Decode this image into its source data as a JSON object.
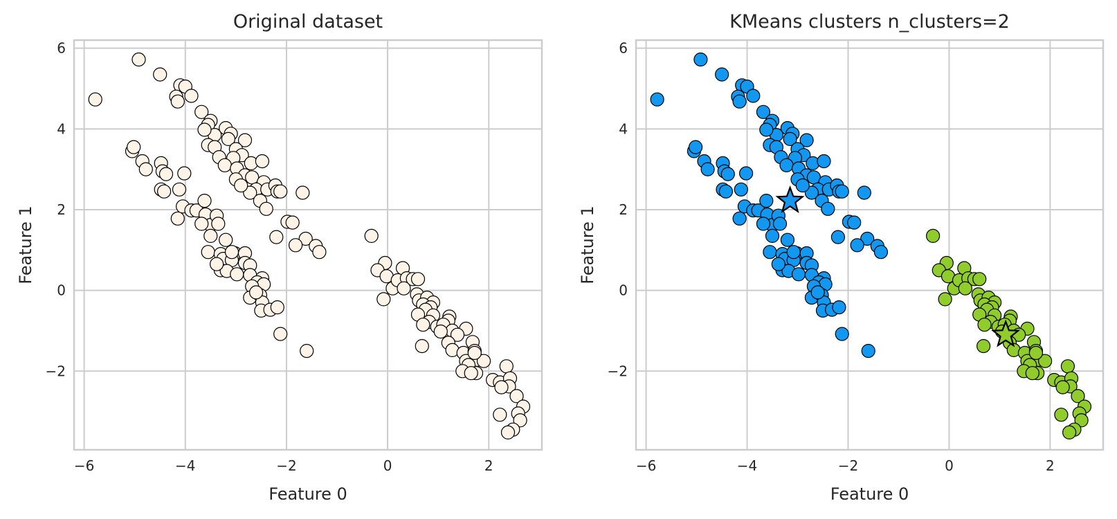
{
  "chart_data": [
    {
      "type": "scatter",
      "title": "Original dataset",
      "xlabel": "Feature 0",
      "ylabel": "Feature 1",
      "xlim": [
        -6.2,
        3.05
      ],
      "ylim": [
        -3.95,
        6.2
      ],
      "xticks": [
        -6,
        -4,
        -2,
        0,
        2
      ],
      "yticks": [
        -2,
        0,
        2,
        4,
        6
      ],
      "grid": true,
      "marker_color": "#fdf3e7",
      "points": [
        [
          -5.78,
          4.73
        ],
        [
          -4.92,
          5.72
        ],
        [
          -4.5,
          5.35
        ],
        [
          -4.1,
          5.08
        ],
        [
          -4.0,
          5.05
        ],
        [
          -3.88,
          4.82
        ],
        [
          -4.18,
          4.8
        ],
        [
          -4.15,
          4.68
        ],
        [
          -3.68,
          4.42
        ],
        [
          -3.5,
          4.2
        ],
        [
          -3.55,
          4.1
        ],
        [
          -3.42,
          3.85
        ],
        [
          -3.2,
          4.02
        ],
        [
          -3.1,
          3.88
        ],
        [
          -3.15,
          3.75
        ],
        [
          -3.62,
          3.98
        ],
        [
          -2.82,
          3.72
        ],
        [
          -3.55,
          3.6
        ],
        [
          -3.42,
          3.55
        ],
        [
          -3.0,
          3.5
        ],
        [
          -2.88,
          3.35
        ],
        [
          -3.33,
          3.3
        ],
        [
          -3.05,
          3.28
        ],
        [
          -2.7,
          3.15
        ],
        [
          -2.48,
          3.2
        ],
        [
          -3.22,
          3.1
        ],
        [
          -2.98,
          3.02
        ],
        [
          -2.82,
          2.85
        ],
        [
          -3.0,
          2.75
        ],
        [
          -2.68,
          2.8
        ],
        [
          -2.45,
          2.68
        ],
        [
          -2.6,
          2.5
        ],
        [
          -2.72,
          2.42
        ],
        [
          -2.38,
          2.5
        ],
        [
          -2.22,
          2.6
        ],
        [
          -2.18,
          2.45
        ],
        [
          -2.12,
          2.45
        ],
        [
          -1.68,
          2.42
        ],
        [
          -2.52,
          2.22
        ],
        [
          -2.4,
          2.02
        ],
        [
          -1.98,
          1.7
        ],
        [
          -1.88,
          1.68
        ],
        [
          -2.2,
          1.32
        ],
        [
          -1.62,
          1.28
        ],
        [
          -1.42,
          1.1
        ],
        [
          -1.35,
          0.95
        ],
        [
          -1.82,
          1.12
        ],
        [
          -2.9,
          2.6
        ],
        [
          -5.05,
          3.45
        ],
        [
          -5.02,
          3.55
        ],
        [
          -4.85,
          3.2
        ],
        [
          -4.78,
          3.0
        ],
        [
          -4.48,
          3.15
        ],
        [
          -4.45,
          2.95
        ],
        [
          -4.38,
          2.88
        ],
        [
          -4.48,
          2.5
        ],
        [
          -4.02,
          2.9
        ],
        [
          -4.42,
          2.45
        ],
        [
          -4.12,
          2.5
        ],
        [
          -4.05,
          2.08
        ],
        [
          -3.88,
          1.98
        ],
        [
          -3.78,
          1.98
        ],
        [
          -4.15,
          1.78
        ],
        [
          -3.62,
          2.22
        ],
        [
          -3.6,
          1.88
        ],
        [
          -3.5,
          1.62
        ],
        [
          -3.38,
          1.85
        ],
        [
          -3.35,
          1.65
        ],
        [
          -3.68,
          1.65
        ],
        [
          -3.5,
          1.35
        ],
        [
          -3.2,
          1.25
        ],
        [
          -3.55,
          0.95
        ],
        [
          -3.3,
          0.9
        ],
        [
          -3.02,
          0.92
        ],
        [
          -2.82,
          0.92
        ],
        [
          -3.25,
          0.78
        ],
        [
          -3.08,
          0.75
        ],
        [
          -2.82,
          0.68
        ],
        [
          -2.72,
          0.62
        ],
        [
          -3.3,
          0.5
        ],
        [
          -3.18,
          0.48
        ],
        [
          -2.98,
          0.4
        ],
        [
          -2.72,
          0.38
        ],
        [
          -3.38,
          0.65
        ],
        [
          -2.48,
          0.3
        ],
        [
          -2.58,
          0.2
        ],
        [
          -2.45,
          0.15
        ],
        [
          -2.68,
          0.1
        ],
        [
          -2.72,
          -0.18
        ],
        [
          -2.52,
          -0.12
        ],
        [
          -2.48,
          -0.3
        ],
        [
          -2.5,
          -0.5
        ],
        [
          -2.32,
          -0.48
        ],
        [
          -2.18,
          -0.42
        ],
        [
          -2.6,
          -0.05
        ],
        [
          -3.08,
          0.95
        ],
        [
          -2.12,
          -1.08
        ],
        [
          -1.6,
          -1.5
        ],
        [
          -0.32,
          1.35
        ],
        [
          -0.05,
          0.68
        ],
        [
          -0.2,
          0.5
        ],
        [
          0.3,
          0.55
        ],
        [
          -0.02,
          0.35
        ],
        [
          0.1,
          0.05
        ],
        [
          -0.08,
          -0.22
        ],
        [
          0.2,
          0.25
        ],
        [
          0.38,
          0.3
        ],
        [
          0.5,
          0.28
        ],
        [
          0.6,
          0.28
        ],
        [
          0.32,
          0.05
        ],
        [
          0.58,
          -0.1
        ],
        [
          0.62,
          -0.25
        ],
        [
          0.78,
          -0.18
        ],
        [
          0.9,
          -0.3
        ],
        [
          0.7,
          -0.35
        ],
        [
          0.85,
          -0.42
        ],
        [
          0.75,
          -0.48
        ],
        [
          0.6,
          -0.6
        ],
        [
          0.9,
          -0.62
        ],
        [
          0.82,
          -0.78
        ],
        [
          0.7,
          -0.85
        ],
        [
          0.98,
          -0.9
        ],
        [
          1.22,
          -0.65
        ],
        [
          1.2,
          -0.75
        ],
        [
          1.1,
          -0.85
        ],
        [
          1.55,
          -0.95
        ],
        [
          1.28,
          -1.0
        ],
        [
          1.05,
          -1.02
        ],
        [
          1.38,
          -1.1
        ],
        [
          1.2,
          -1.3
        ],
        [
          0.68,
          -1.38
        ],
        [
          1.68,
          -1.28
        ],
        [
          1.28,
          -1.48
        ],
        [
          1.5,
          -1.55
        ],
        [
          1.72,
          -1.5
        ],
        [
          1.78,
          -1.72
        ],
        [
          1.9,
          -1.75
        ],
        [
          1.55,
          -1.75
        ],
        [
          1.6,
          -1.85
        ],
        [
          1.48,
          -2.0
        ],
        [
          1.75,
          -2.05
        ],
        [
          1.65,
          -2.05
        ],
        [
          2.35,
          -1.88
        ],
        [
          2.08,
          -2.22
        ],
        [
          2.22,
          -2.28
        ],
        [
          2.42,
          -2.18
        ],
        [
          2.4,
          -2.38
        ],
        [
          2.25,
          -2.4
        ],
        [
          2.55,
          -2.62
        ],
        [
          2.68,
          -2.88
        ],
        [
          2.58,
          -3.05
        ],
        [
          2.22,
          -3.08
        ],
        [
          2.62,
          -3.22
        ],
        [
          2.48,
          -3.45
        ],
        [
          2.38,
          -3.52
        ],
        [
          1.72,
          -1.55
        ]
      ]
    },
    {
      "type": "scatter",
      "title": "KMeans clusters n_clusters=2",
      "xlabel": "Feature 0",
      "ylabel": "Feature 1",
      "xlim": [
        -6.2,
        3.05
      ],
      "ylim": [
        -3.95,
        6.2
      ],
      "xticks": [
        -6,
        -4,
        -2,
        0,
        2
      ],
      "yticks": [
        -2,
        0,
        2,
        4,
        6
      ],
      "grid": true,
      "cluster_colors": [
        "#1298f0",
        "#90cc2c"
      ],
      "centroids": [
        [
          -3.15,
          2.22
        ],
        [
          1.12,
          -1.1
        ]
      ],
      "cluster_split_x": -1.0
    }
  ]
}
